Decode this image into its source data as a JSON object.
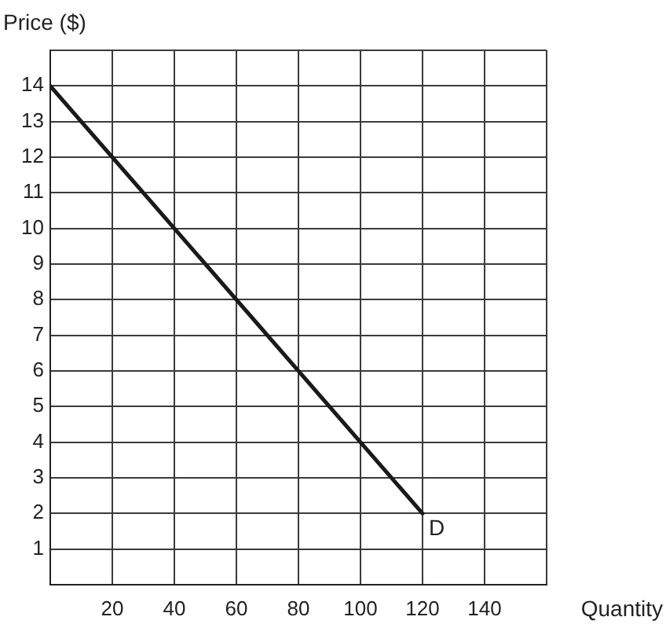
{
  "chart_data": {
    "type": "line",
    "xlabel": "Quantity",
    "ylabel": "Price ($)",
    "x": [
      0,
      120
    ],
    "series": [
      {
        "color": "#1a1a1a",
        "values": [
          14,
          2
        ]
      }
    ],
    "xlim": [
      0,
      160
    ],
    "xticks": [
      20,
      40,
      60,
      80,
      100,
      120,
      140,
      {
        "value": 160,
        "label": null
      }
    ],
    "ylim": [
      0,
      15
    ],
    "yticks": [
      1,
      2,
      3,
      4,
      5,
      6,
      7,
      8,
      9,
      10,
      11,
      12,
      13,
      14,
      {
        "value": 15,
        "label": null
      }
    ],
    "grid": true,
    "marker": "none",
    "line_style": "solid",
    "annotations": [
      {
        "text": "D",
        "x": 120,
        "y": 2
      }
    ]
  }
}
